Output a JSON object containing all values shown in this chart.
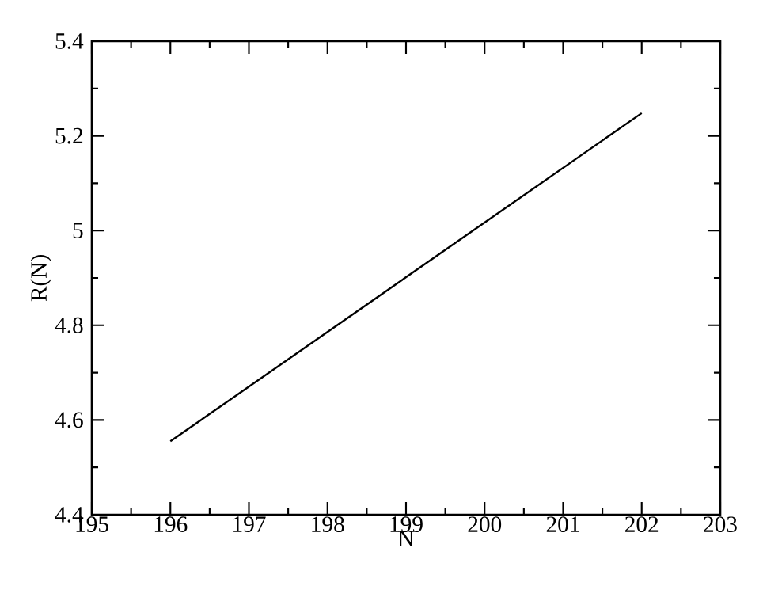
{
  "chart_data": {
    "type": "line",
    "xlabel": "N",
    "ylabel": "R(N)",
    "x": [
      196,
      202
    ],
    "series": [
      {
        "color": "#000000",
        "values": [
          4.555,
          5.248
        ]
      }
    ],
    "xlim": [
      195,
      203
    ],
    "ylim": [
      4.4,
      5.4
    ],
    "xticks": [
      195,
      196,
      197,
      198,
      199,
      200,
      201,
      202,
      203
    ],
    "yticks": [
      4.4,
      4.6,
      4.8,
      5,
      5.2,
      5.4
    ]
  }
}
